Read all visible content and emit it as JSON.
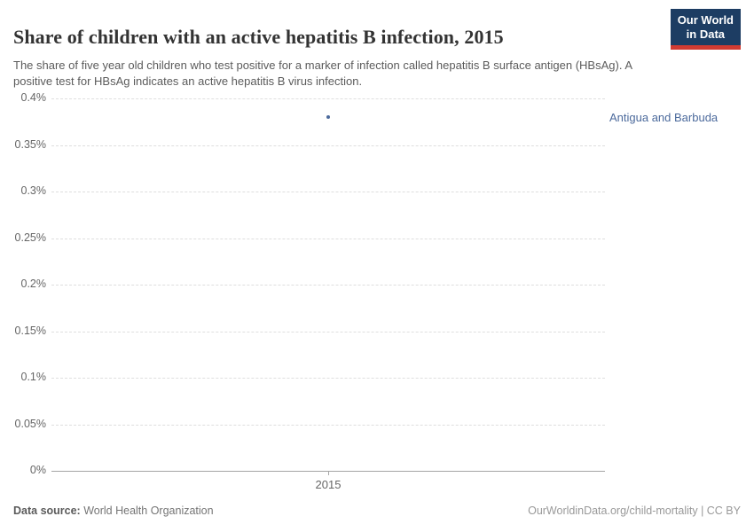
{
  "header": {
    "title": "Share of children with an active hepatitis B infection, 2015",
    "subtitle": "The share of five year old children who test positive for a marker of infection called hepatitis B surface antigen (HBsAg). A positive test for HBsAg indicates an active hepatitis B virus infection.",
    "logo": {
      "line1": "Our World",
      "line2": "in Data",
      "bg_color": "#1d3d63",
      "accent_color": "#d13b32"
    }
  },
  "chart_data": {
    "type": "scatter",
    "title": "Share of children with an active hepatitis B infection, 2015",
    "series": [
      {
        "name": "Antigua and Barbuda",
        "x": [
          2015
        ],
        "y": [
          0.38
        ],
        "color": "#4c6a9c"
      }
    ],
    "xlabel": "",
    "ylabel": "",
    "x_tick_labels": [
      "2015"
    ],
    "y_tick_values": [
      0,
      0.05,
      0.1,
      0.15,
      0.2,
      0.25,
      0.3,
      0.35,
      0.4
    ],
    "y_tick_labels": [
      "0%",
      "0.05%",
      "0.1%",
      "0.15%",
      "0.2%",
      "0.25%",
      "0.3%",
      "0.35%",
      "0.4%"
    ],
    "ylim": [
      0,
      0.4
    ],
    "xlim": [
      2014.5,
      2015.5
    ],
    "grid": true,
    "gridline_style": "dashed",
    "legend_position": "right-of-plot"
  },
  "footer": {
    "source_label": "Data source:",
    "source_value": " World Health Organization",
    "attribution": "OurWorldinData.org/child-mortality | CC BY"
  }
}
